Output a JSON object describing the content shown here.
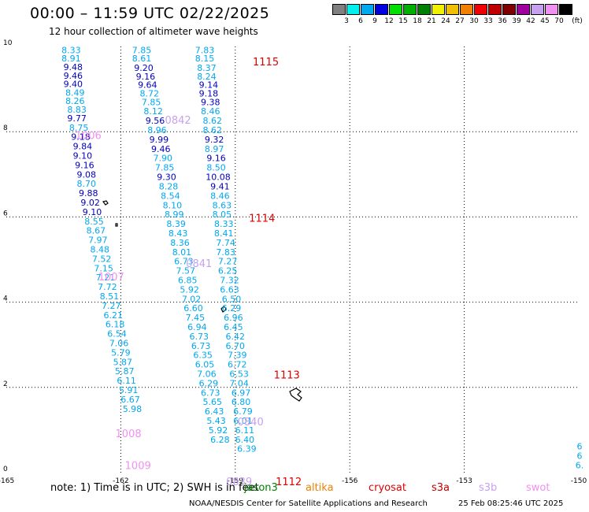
{
  "header": {
    "title": "00:00 – 11:59 UTC 02/22/2025",
    "subtitle": "12 hour collection of altimeter wave heights"
  },
  "legend": {
    "unit": "(ft)",
    "colors": [
      "#808080",
      "#00f0f0",
      "#00a8f0",
      "#0000e0",
      "#00e000",
      "#00b000",
      "#008000",
      "#f0f000",
      "#f0c000",
      "#f08000",
      "#f00000",
      "#c00000",
      "#800000",
      "#a000a0",
      "#c8a0f0",
      "#f090f0",
      "#000000"
    ],
    "ticks": [
      "3",
      "6",
      "9",
      "12",
      "15",
      "18",
      "21",
      "24",
      "27",
      "30",
      "33",
      "36",
      "39",
      "42",
      "45",
      "70"
    ]
  },
  "axes": {
    "x_ticks": [
      "-165",
      "-162",
      "-159",
      "-156",
      "-153",
      "-150"
    ],
    "y_ticks": [
      "10",
      "8",
      "6",
      "4",
      "2",
      "0"
    ],
    "xlim": [
      -165,
      -150
    ],
    "ylim": [
      0,
      10
    ]
  },
  "legend_satellites": [
    {
      "name": "jason3",
      "color": "#008000"
    },
    {
      "name": "altika",
      "color": "#f08000"
    },
    {
      "name": "cryosat",
      "color": "#e00000"
    },
    {
      "name": "s3a",
      "color": "#c00000"
    },
    {
      "name": "s3b",
      "color": "#c8a0f0"
    },
    {
      "name": "swot",
      "color": "#f090f0"
    }
  ],
  "note": "note: 1) Time is in UTC; 2) SWH is in feet",
  "footer": {
    "left": "NOAA/NESDIS Center for Satellite Applications and Research",
    "right": "25 Feb 08:25:46 UTC 2025"
  },
  "tracks": [
    {
      "name": "track-a",
      "color_light": "#00a8f0",
      "color_dark": "#0000c0",
      "points": [
        {
          "lon": -163.3,
          "lat": 9.92,
          "v": "8.33",
          "c": "l"
        },
        {
          "lon": -163.3,
          "lat": 9.72,
          "v": "8.91",
          "c": "l"
        },
        {
          "lon": -163.25,
          "lat": 9.52,
          "v": "9.48",
          "c": "d"
        },
        {
          "lon": -163.25,
          "lat": 9.32,
          "v": "9.46",
          "c": "d"
        },
        {
          "lon": -163.25,
          "lat": 9.12,
          "v": "9.40",
          "c": "d"
        },
        {
          "lon": -163.2,
          "lat": 8.92,
          "v": "8.49",
          "c": "l"
        },
        {
          "lon": -163.2,
          "lat": 8.72,
          "v": "8.26",
          "c": "l"
        },
        {
          "lon": -163.15,
          "lat": 8.52,
          "v": "8.83",
          "c": "l"
        },
        {
          "lon": -163.15,
          "lat": 8.32,
          "v": "9.77",
          "c": "d"
        },
        {
          "lon": -163.1,
          "lat": 8.1,
          "v": "8.75",
          "c": "l"
        },
        {
          "lon": -163.05,
          "lat": 7.88,
          "v": "9.18",
          "c": "d"
        },
        {
          "lon": -163.0,
          "lat": 7.66,
          "v": "9.84",
          "c": "d"
        },
        {
          "lon": -163.0,
          "lat": 7.44,
          "v": "9.10",
          "c": "d"
        },
        {
          "lon": -162.95,
          "lat": 7.22,
          "v": "9.16",
          "c": "d"
        },
        {
          "lon": -162.9,
          "lat": 7.0,
          "v": "9.08",
          "c": "d"
        },
        {
          "lon": -162.9,
          "lat": 6.78,
          "v": "8.70",
          "c": "l"
        },
        {
          "lon": -162.85,
          "lat": 6.56,
          "v": "9.88",
          "c": "d"
        },
        {
          "lon": -162.8,
          "lat": 6.34,
          "v": "9.02",
          "c": "d"
        },
        {
          "lon": -162.75,
          "lat": 6.12,
          "v": "9.10",
          "c": "d"
        },
        {
          "lon": -162.7,
          "lat": 5.9,
          "v": "8.55",
          "c": "l"
        },
        {
          "lon": -162.65,
          "lat": 5.68,
          "v": "8.67",
          "c": "l"
        },
        {
          "lon": -162.6,
          "lat": 5.46,
          "v": "7.97",
          "c": "l"
        },
        {
          "lon": -162.55,
          "lat": 5.24,
          "v": "8.48",
          "c": "l"
        },
        {
          "lon": -162.5,
          "lat": 5.02,
          "v": "7.52",
          "c": "l"
        },
        {
          "lon": -162.45,
          "lat": 4.8,
          "v": "7.15",
          "c": "l"
        },
        {
          "lon": -162.4,
          "lat": 4.58,
          "v": "7.21",
          "c": "l"
        },
        {
          "lon": -162.35,
          "lat": 4.36,
          "v": "7.72",
          "c": "l"
        },
        {
          "lon": -162.3,
          "lat": 4.14,
          "v": "8.51",
          "c": "l"
        },
        {
          "lon": -162.25,
          "lat": 3.92,
          "v": "7.27",
          "c": "l"
        },
        {
          "lon": -162.2,
          "lat": 3.7,
          "v": "6.21",
          "c": "l"
        },
        {
          "lon": -162.15,
          "lat": 3.48,
          "v": "6.18",
          "c": "l"
        },
        {
          "lon": -162.1,
          "lat": 3.26,
          "v": "6.54",
          "c": "l"
        },
        {
          "lon": -162.05,
          "lat": 3.04,
          "v": "7.06",
          "c": "l"
        },
        {
          "lon": -162.0,
          "lat": 2.82,
          "v": "5.79",
          "c": "l"
        },
        {
          "lon": -161.95,
          "lat": 2.6,
          "v": "5.87",
          "c": "l"
        },
        {
          "lon": -161.9,
          "lat": 2.38,
          "v": "5.87",
          "c": "l"
        },
        {
          "lon": -161.85,
          "lat": 2.16,
          "v": "6.11",
          "c": "l"
        },
        {
          "lon": -161.8,
          "lat": 1.94,
          "v": "5.91",
          "c": "l"
        },
        {
          "lon": -161.75,
          "lat": 1.72,
          "v": "6.67",
          "c": "l"
        },
        {
          "lon": -161.7,
          "lat": 1.5,
          "v": "5.98",
          "c": "l"
        }
      ]
    },
    {
      "name": "track-b",
      "color_light": "#00a8f0",
      "color_dark": "#0000c0",
      "points": [
        {
          "lon": -161.45,
          "lat": 9.92,
          "v": "7.85",
          "c": "l"
        },
        {
          "lon": -161.45,
          "lat": 9.72,
          "v": "8.61",
          "c": "l"
        },
        {
          "lon": -161.4,
          "lat": 9.5,
          "v": "9.20",
          "c": "d"
        },
        {
          "lon": -161.35,
          "lat": 9.3,
          "v": "9.16",
          "c": "d"
        },
        {
          "lon": -161.3,
          "lat": 9.1,
          "v": "9.64",
          "c": "d"
        },
        {
          "lon": -161.25,
          "lat": 8.9,
          "v": "8.72",
          "c": "l"
        },
        {
          "lon": -161.2,
          "lat": 8.7,
          "v": "7.85",
          "c": "l"
        },
        {
          "lon": -161.15,
          "lat": 8.48,
          "v": "8.12",
          "c": "l"
        },
        {
          "lon": -161.1,
          "lat": 8.26,
          "v": "9.56",
          "c": "d"
        },
        {
          "lon": -161.05,
          "lat": 8.04,
          "v": "8.96",
          "c": "l"
        },
        {
          "lon": -161.0,
          "lat": 7.82,
          "v": "9.99",
          "c": "d"
        },
        {
          "lon": -160.95,
          "lat": 7.6,
          "v": "9.46",
          "c": "d"
        },
        {
          "lon": -160.9,
          "lat": 7.38,
          "v": "7.90",
          "c": "l"
        },
        {
          "lon": -160.85,
          "lat": 7.16,
          "v": "7.85",
          "c": "l"
        },
        {
          "lon": -160.8,
          "lat": 6.94,
          "v": "9.30",
          "c": "d"
        },
        {
          "lon": -160.75,
          "lat": 6.72,
          "v": "8.28",
          "c": "l"
        },
        {
          "lon": -160.7,
          "lat": 6.5,
          "v": "8.54",
          "c": "l"
        },
        {
          "lon": -160.65,
          "lat": 6.28,
          "v": "8.10",
          "c": "l"
        },
        {
          "lon": -160.6,
          "lat": 6.06,
          "v": "8.99",
          "c": "l"
        },
        {
          "lon": -160.55,
          "lat": 5.84,
          "v": "8.39",
          "c": "l"
        },
        {
          "lon": -160.5,
          "lat": 5.62,
          "v": "8.43",
          "c": "l"
        },
        {
          "lon": -160.45,
          "lat": 5.4,
          "v": "8.36",
          "c": "l"
        },
        {
          "lon": -160.4,
          "lat": 5.18,
          "v": "8.01",
          "c": "l"
        },
        {
          "lon": -160.35,
          "lat": 4.96,
          "v": "6.73",
          "c": "l"
        },
        {
          "lon": -160.3,
          "lat": 4.74,
          "v": "7.57",
          "c": "l"
        },
        {
          "lon": -160.25,
          "lat": 4.52,
          "v": "6.85",
          "c": "l"
        },
        {
          "lon": -160.2,
          "lat": 4.3,
          "v": "5.92",
          "c": "l"
        },
        {
          "lon": -160.15,
          "lat": 4.08,
          "v": "7.02",
          "c": "l"
        },
        {
          "lon": -160.1,
          "lat": 3.86,
          "v": "6.60",
          "c": "l"
        },
        {
          "lon": -160.05,
          "lat": 3.64,
          "v": "7.45",
          "c": "l"
        },
        {
          "lon": -160.0,
          "lat": 3.42,
          "v": "6.94",
          "c": "l"
        },
        {
          "lon": -159.95,
          "lat": 3.2,
          "v": "6.73",
          "c": "l"
        },
        {
          "lon": -159.9,
          "lat": 2.98,
          "v": "6.73",
          "c": "l"
        },
        {
          "lon": -159.85,
          "lat": 2.76,
          "v": "6.35",
          "c": "l"
        },
        {
          "lon": -159.8,
          "lat": 2.54,
          "v": "6.05",
          "c": "l"
        },
        {
          "lon": -159.75,
          "lat": 2.32,
          "v": "7.06",
          "c": "l"
        },
        {
          "lon": -159.7,
          "lat": 2.1,
          "v": "6.29",
          "c": "l"
        },
        {
          "lon": -159.65,
          "lat": 1.88,
          "v": "6.73",
          "c": "l"
        },
        {
          "lon": -159.6,
          "lat": 1.66,
          "v": "5.65",
          "c": "l"
        },
        {
          "lon": -159.55,
          "lat": 1.44,
          "v": "6.43",
          "c": "l"
        },
        {
          "lon": -159.5,
          "lat": 1.22,
          "v": "5.43",
          "c": "l"
        },
        {
          "lon": -159.45,
          "lat": 1.0,
          "v": "5.92",
          "c": "l"
        },
        {
          "lon": -159.4,
          "lat": 0.78,
          "v": "6.28",
          "c": "l"
        }
      ]
    },
    {
      "name": "track-c",
      "color_light": "#00a8f0",
      "color_dark": "#0000c0",
      "points": [
        {
          "lon": -159.8,
          "lat": 9.92,
          "v": "7.83",
          "c": "l"
        },
        {
          "lon": -159.8,
          "lat": 9.72,
          "v": "8.15",
          "c": "l"
        },
        {
          "lon": -159.75,
          "lat": 9.5,
          "v": "8.37",
          "c": "l"
        },
        {
          "lon": -159.75,
          "lat": 9.3,
          "v": "8.24",
          "c": "l"
        },
        {
          "lon": -159.7,
          "lat": 9.1,
          "v": "9.14",
          "c": "d"
        },
        {
          "lon": -159.7,
          "lat": 8.9,
          "v": "9.18",
          "c": "d"
        },
        {
          "lon": -159.65,
          "lat": 8.7,
          "v": "9.38",
          "c": "d"
        },
        {
          "lon": -159.65,
          "lat": 8.48,
          "v": "8.46",
          "c": "l"
        },
        {
          "lon": -159.6,
          "lat": 8.26,
          "v": "8.62",
          "c": "l"
        },
        {
          "lon": -159.6,
          "lat": 8.04,
          "v": "8.62",
          "c": "l"
        },
        {
          "lon": -159.55,
          "lat": 7.82,
          "v": "9.32",
          "c": "d"
        },
        {
          "lon": -159.55,
          "lat": 7.6,
          "v": "8.97",
          "c": "l"
        },
        {
          "lon": -159.5,
          "lat": 7.38,
          "v": "9.16",
          "c": "d"
        },
        {
          "lon": -159.5,
          "lat": 7.16,
          "v": "8.50",
          "c": "l"
        },
        {
          "lon": -159.45,
          "lat": 6.94,
          "v": "10.08",
          "c": "d"
        },
        {
          "lon": -159.4,
          "lat": 6.72,
          "v": "9.41",
          "c": "d"
        },
        {
          "lon": -159.4,
          "lat": 6.5,
          "v": "8.46",
          "c": "l"
        },
        {
          "lon": -159.35,
          "lat": 6.28,
          "v": "8.63",
          "c": "l"
        },
        {
          "lon": -159.35,
          "lat": 6.06,
          "v": "8.05",
          "c": "l"
        },
        {
          "lon": -159.3,
          "lat": 5.84,
          "v": "8.33",
          "c": "l"
        },
        {
          "lon": -159.3,
          "lat": 5.62,
          "v": "8.41",
          "c": "l"
        },
        {
          "lon": -159.25,
          "lat": 5.4,
          "v": "7.74",
          "c": "l"
        },
        {
          "lon": -159.25,
          "lat": 5.18,
          "v": "7.83",
          "c": "l"
        },
        {
          "lon": -159.2,
          "lat": 4.96,
          "v": "7.27",
          "c": "l"
        },
        {
          "lon": -159.2,
          "lat": 4.74,
          "v": "6.25",
          "c": "l"
        },
        {
          "lon": -159.15,
          "lat": 4.52,
          "v": "7.32",
          "c": "l"
        },
        {
          "lon": -159.15,
          "lat": 4.3,
          "v": "6.63",
          "c": "l"
        },
        {
          "lon": -159.1,
          "lat": 4.08,
          "v": "6.50",
          "c": "l"
        },
        {
          "lon": -159.1,
          "lat": 3.86,
          "v": "6.29",
          "c": "l"
        },
        {
          "lon": -159.05,
          "lat": 3.64,
          "v": "6.96",
          "c": "l"
        },
        {
          "lon": -159.05,
          "lat": 3.42,
          "v": "6.45",
          "c": "l"
        },
        {
          "lon": -159.0,
          "lat": 3.2,
          "v": "6.42",
          "c": "l"
        },
        {
          "lon": -159.0,
          "lat": 2.98,
          "v": "6.70",
          "c": "l"
        },
        {
          "lon": -158.95,
          "lat": 2.76,
          "v": "7.39",
          "c": "l"
        },
        {
          "lon": -158.95,
          "lat": 2.54,
          "v": "6.72",
          "c": "l"
        },
        {
          "lon": -158.9,
          "lat": 2.32,
          "v": "6.53",
          "c": "l"
        },
        {
          "lon": -158.9,
          "lat": 2.1,
          "v": "7.04",
          "c": "l"
        },
        {
          "lon": -158.85,
          "lat": 1.88,
          "v": "6.97",
          "c": "l"
        },
        {
          "lon": -158.85,
          "lat": 1.66,
          "v": "6.80",
          "c": "l"
        },
        {
          "lon": -158.8,
          "lat": 1.44,
          "v": "6.79",
          "c": "l"
        },
        {
          "lon": -158.8,
          "lat": 1.22,
          "v": "6.01",
          "c": "l"
        },
        {
          "lon": -158.75,
          "lat": 1.0,
          "v": "6.11",
          "c": "l"
        },
        {
          "lon": -158.75,
          "lat": 0.78,
          "v": "6.40",
          "c": "l"
        },
        {
          "lon": -158.7,
          "lat": 0.56,
          "v": "6.39",
          "c": "l"
        }
      ]
    },
    {
      "name": "track-d",
      "color_light": "#00a8f0",
      "color_dark": "#0000c0",
      "points": [
        {
          "lon": -149.98,
          "lat": 0.62,
          "v": "6",
          "c": "l"
        },
        {
          "lon": -149.98,
          "lat": 0.4,
          "v": "6",
          "c": "l"
        },
        {
          "lon": -149.98,
          "lat": 0.18,
          "v": "6.",
          "c": "l"
        }
      ]
    }
  ],
  "pass_labels": [
    {
      "lon": -158.2,
      "lat": 9.65,
      "v": "1115",
      "color": "#e00000"
    },
    {
      "lon": -160.5,
      "lat": 8.28,
      "v": "0842",
      "color": "#c8a0f0"
    },
    {
      "lon": -162.85,
      "lat": 7.92,
      "v": "1006",
      "color": "#f090f0"
    },
    {
      "lon": -158.3,
      "lat": 5.98,
      "v": "1114",
      "color": "#e00000"
    },
    {
      "lon": -162.25,
      "lat": 4.6,
      "v": "1007",
      "color": "#f090f0"
    },
    {
      "lon": -159.95,
      "lat": 4.92,
      "v": "0841",
      "color": "#c8a0f0"
    },
    {
      "lon": -157.65,
      "lat": 2.3,
      "v": "1113",
      "color": "#e00000"
    },
    {
      "lon": -158.6,
      "lat": 1.2,
      "v": "0840",
      "color": "#c8a0f0"
    },
    {
      "lon": -161.8,
      "lat": 0.92,
      "v": "1008",
      "color": "#f090f0"
    },
    {
      "lon": -161.55,
      "lat": 0.18,
      "v": "1009",
      "color": "#f090f0"
    },
    {
      "lon": -157.6,
      "lat": -0.2,
      "v": "1112",
      "color": "#e00000"
    },
    {
      "lon": -158.9,
      "lat": -0.2,
      "v": "0839",
      "color": "#c8a0f0"
    }
  ]
}
